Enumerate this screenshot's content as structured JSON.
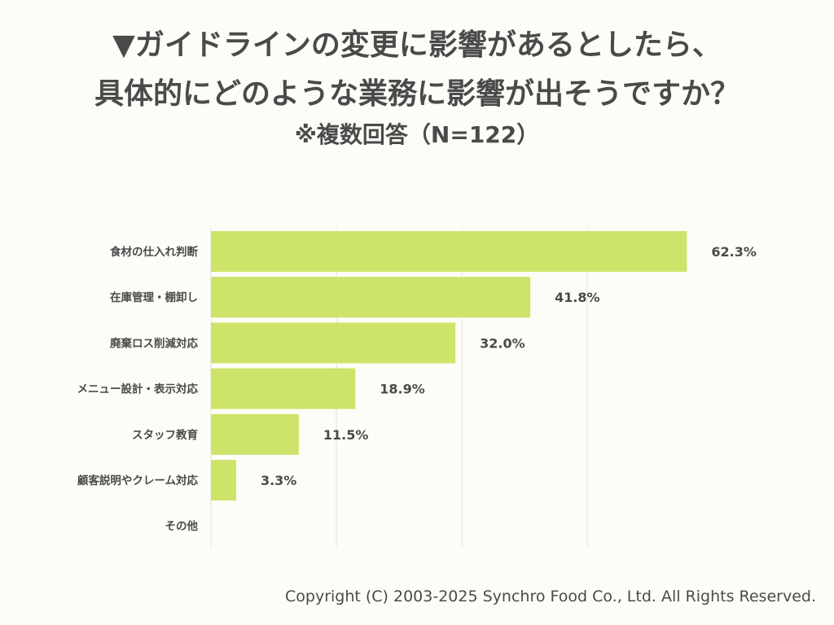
{
  "title": {
    "line1": "▼ガイドラインの変更に影響があるとしたら、",
    "line2": "具体的にどのような業務に影響が出そうですか？",
    "subtitle": "※複数回答（N=122）"
  },
  "chart_data": {
    "type": "bar",
    "orientation": "horizontal",
    "title": "▼ガイドラインの変更に影響があるとしたら、具体的にどのような業務に影響が出そうですか？",
    "subtitle": "※複数回答（N=122）",
    "categories": [
      "食材の仕入れ判断",
      "在庫管理・棚卸し",
      "廃棄ロス削減対応",
      "メニュー設計・表示対応",
      "スタッフ教育",
      "顧客説明やクレーム対応",
      "その他"
    ],
    "values": [
      62.3,
      41.8,
      32.0,
      18.9,
      11.5,
      3.3,
      0
    ],
    "value_labels": [
      "62.3%",
      "41.8%",
      "32.0%",
      "18.9%",
      "11.5%",
      "3.3%",
      ""
    ],
    "xlim": [
      0,
      70
    ],
    "grid": true,
    "xlabel": "",
    "ylabel": "",
    "bar_color": "#cde46a"
  },
  "footer": {
    "copyright": "Copyright (C) 2003-2025  Synchro Food Co., Ltd. All Rights Reserved."
  }
}
